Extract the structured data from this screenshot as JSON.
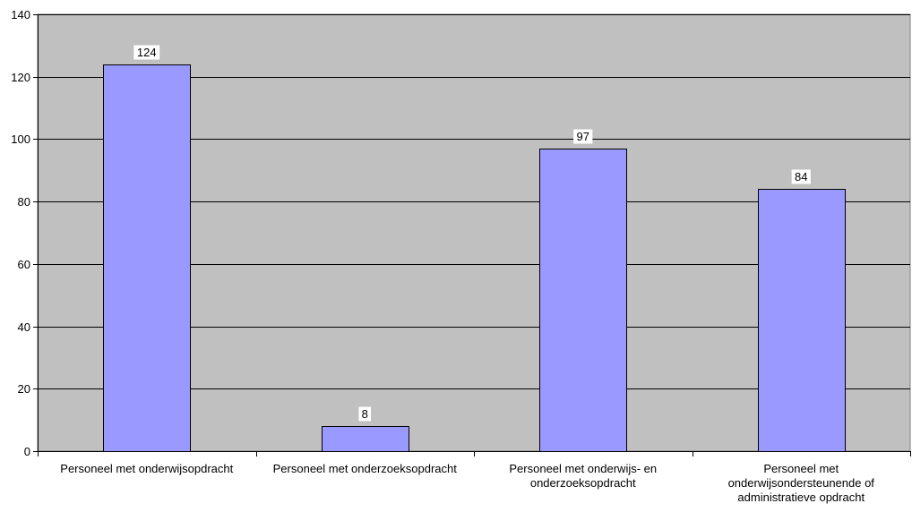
{
  "chart_data": {
    "type": "bar",
    "title": "",
    "xlabel": "",
    "ylabel": "",
    "categories": [
      [
        "Personeel met onderwijsopdracht"
      ],
      [
        "Personeel met onderzoeksopdracht"
      ],
      [
        "Personeel met onderwijs- en",
        "onderzoeksopdracht"
      ],
      [
        "Personeel met",
        "onderwijsondersteunende of",
        "administratieve opdracht"
      ]
    ],
    "values": [
      124,
      8,
      97,
      84
    ],
    "ylim": [
      0,
      140
    ],
    "yticks": [
      0,
      20,
      40,
      60,
      80,
      100,
      120,
      140
    ],
    "grid": true,
    "legend": "none",
    "colors": {
      "plot_background": "#c0c0c0",
      "bar_fill": "#9999ff",
      "bar_stroke": "#000000",
      "gridline": "#000000",
      "label_background": "#ffffff"
    }
  }
}
